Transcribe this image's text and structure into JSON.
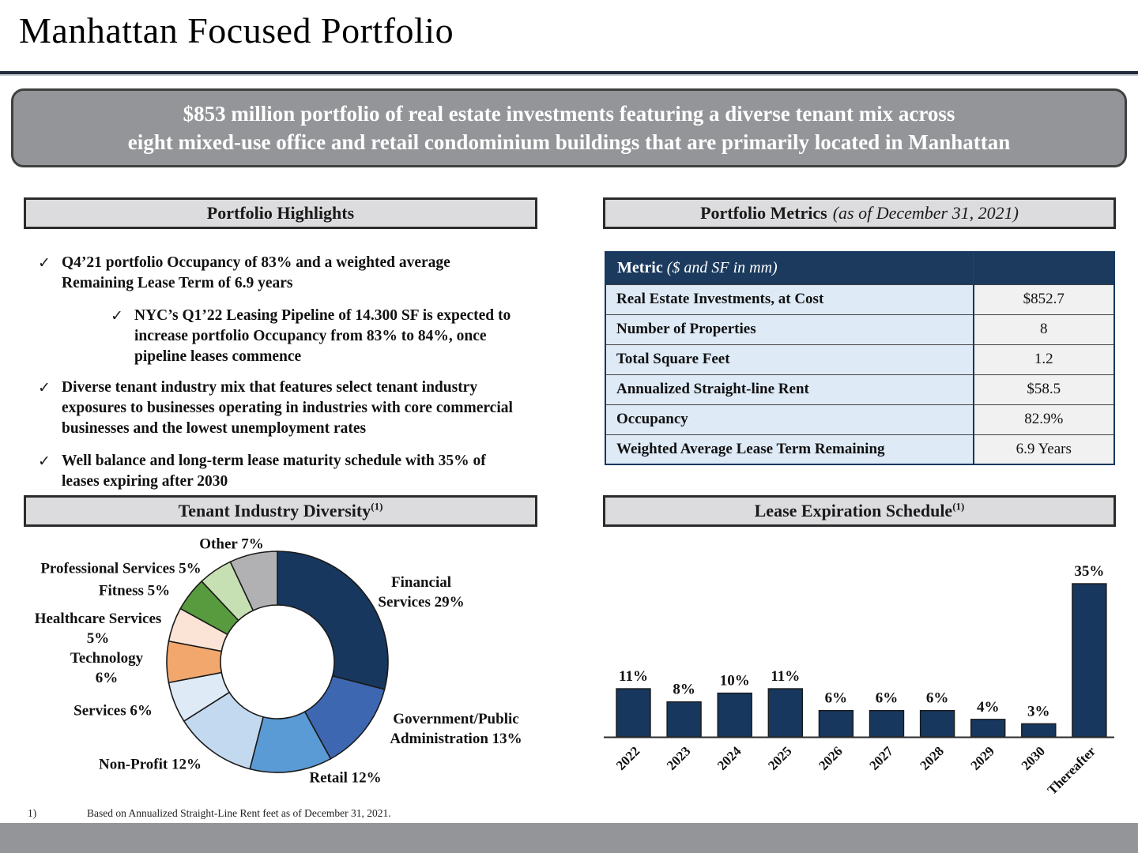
{
  "page": {
    "title": "Manhattan Focused Portfolio",
    "banner_line1": "$853 million portfolio of real estate investments featuring a diverse tenant mix across",
    "banner_line2": "eight mixed-use office and retail condominium buildings that are primarily located in Manhattan",
    "footnote_number": "1)",
    "footnote_text": "Based on Annualized Straight-Line Rent feet as of December 31, 2021."
  },
  "highlights": {
    "header": "Portfolio Highlights",
    "check_glyph": "✓",
    "bullets": [
      {
        "level": 1,
        "text": "Q4’21 portfolio Occupancy of 83% and a weighted average Remaining Lease Term of 6.9 years"
      },
      {
        "level": 2,
        "text": "NYC’s Q1’22 Leasing Pipeline of 14.300 SF is expected to increase portfolio Occupancy from 83% to 84%, once pipeline leases commence"
      },
      {
        "level": 1,
        "text": "Diverse tenant industry mix that features select tenant industry exposures to businesses operating in industries with core commercial businesses and the lowest unemployment rates"
      },
      {
        "level": 1,
        "text": "Well balance and long-term lease maturity schedule with 35% of leases expiring after 2030"
      }
    ]
  },
  "metrics": {
    "header_bold": "Portfolio Metrics",
    "header_italic": "(as of December 31, 2021)",
    "table": {
      "header_bold": "Metric",
      "header_italic": " ($ and SF in mm)",
      "rows": [
        {
          "label": "Real Estate Investments, at Cost",
          "value": "$852.7"
        },
        {
          "label": "Number of Properties",
          "value": "8"
        },
        {
          "label": "Total Square Feet",
          "value": "1.2"
        },
        {
          "label": "Annualized Straight-line Rent",
          "value": "$58.5"
        },
        {
          "label": "Occupancy",
          "value": "82.9%"
        },
        {
          "label": "Weighted Average Lease Term Remaining",
          "value": "6.9 Years"
        }
      ]
    }
  },
  "chart_data": [
    {
      "type": "pie",
      "title": "Tenant Industry Diversity",
      "title_superscript": "(1)",
      "donut": true,
      "start_angle_deg": 0,
      "direction": "clockwise",
      "legend_position": "outside-labels",
      "slices": [
        {
          "id": "financial",
          "name": "Financial Services",
          "pct": 29,
          "color": "#17375E",
          "label_lines": [
            "Financial",
            "Services 29%"
          ]
        },
        {
          "id": "government",
          "name": "Government/Public Administration",
          "pct": 13,
          "color": "#3E67B1",
          "label_lines": [
            "Government/Public",
            "Administration 13%"
          ]
        },
        {
          "id": "retail",
          "name": "Retail",
          "pct": 12,
          "color": "#5B9BD5",
          "label_lines": [
            "Retail 12%"
          ]
        },
        {
          "id": "nonprofit",
          "name": "Non-Profit",
          "pct": 12,
          "color": "#C3D9F0",
          "label_lines": [
            "Non-Profit 12%"
          ]
        },
        {
          "id": "services",
          "name": "Services",
          "pct": 6,
          "color": "#DEEBF7",
          "label_lines": [
            "Services 6%"
          ]
        },
        {
          "id": "technology",
          "name": "Technology",
          "pct": 6,
          "color": "#F2A86D",
          "label_lines": [
            "Technology",
            "6%"
          ]
        },
        {
          "id": "healthcare",
          "name": "Healthcare Services",
          "pct": 5,
          "color": "#FBE4D5",
          "label_lines": [
            "Healthcare Services",
            "5%"
          ]
        },
        {
          "id": "fitness",
          "name": "Fitness",
          "pct": 5,
          "color": "#589B3E",
          "label_lines": [
            "Fitness 5%"
          ]
        },
        {
          "id": "professional",
          "name": "Professional Services",
          "pct": 5,
          "color": "#C6E0B4",
          "label_lines": [
            "Professional Services 5%"
          ]
        },
        {
          "id": "other",
          "name": "Other",
          "pct": 7,
          "color": "#B1B1B4",
          "label_lines": [
            "Other 7%"
          ]
        }
      ]
    },
    {
      "type": "bar",
      "title": "Lease Expiration Schedule",
      "title_superscript": "(1)",
      "categories": [
        "2022",
        "2023",
        "2024",
        "2025",
        "2026",
        "2027",
        "2028",
        "2029",
        "2030",
        "Thereafter"
      ],
      "values": [
        11,
        8,
        10,
        11,
        6,
        6,
        6,
        4,
        3,
        35
      ],
      "value_labels": [
        "11%",
        "8%",
        "10%",
        "11%",
        "6%",
        "6%",
        "6%",
        "4%",
        "3%",
        "35%"
      ],
      "unit": "%",
      "bar_color": "#17375E",
      "ylim": [
        0,
        38
      ],
      "grid": false,
      "xlabel": "",
      "ylabel": ""
    }
  ]
}
